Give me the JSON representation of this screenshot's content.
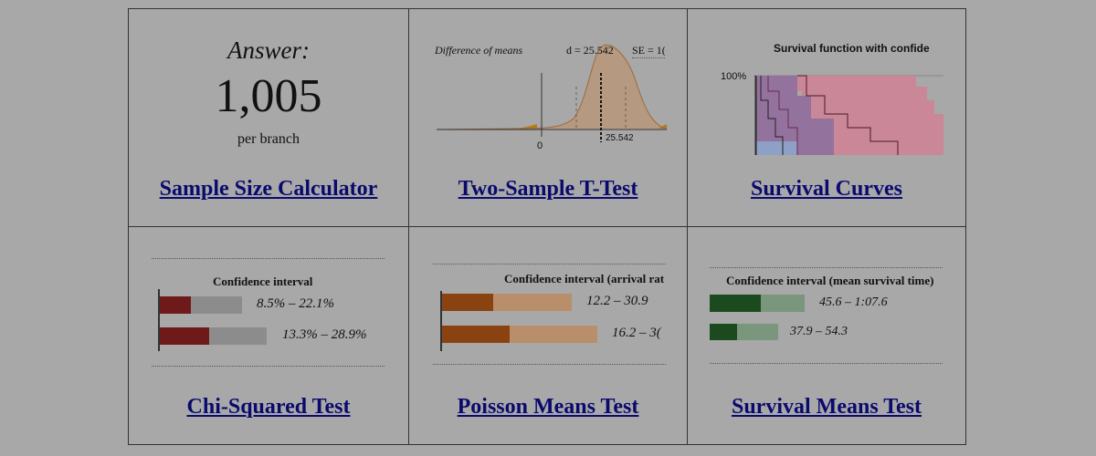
{
  "tools": [
    {
      "title": "Sample Size Calculator"
    },
    {
      "title": "Two-Sample T-Test"
    },
    {
      "title": "Survival Curves"
    },
    {
      "title": "Chi-Squared Test"
    },
    {
      "title": "Poisson Means Test"
    },
    {
      "title": "Survival Means Test"
    }
  ],
  "sample_size": {
    "answer_label": "Answer:",
    "value": "1,005",
    "unit": "per branch"
  },
  "ttest": {
    "title": "Difference of means",
    "d_label": "d = 25.542",
    "se_label": "SE = 1(",
    "zero_tick": "0",
    "mean_tick": "25.542"
  },
  "survival": {
    "title": "Survival function with confide",
    "y_tick": "100%"
  },
  "chi": {
    "ci_title": "Confidence interval",
    "rows": [
      {
        "label": "8.5% – 22.1%"
      },
      {
        "label": "13.3% – 28.9%"
      }
    ],
    "colors": {
      "dark": "#6e1a1a",
      "light": "#8c8c8c"
    }
  },
  "poisson": {
    "ci_title": "Confidence interval (arrival rat",
    "rows": [
      {
        "label": "12.2 – 30.9"
      },
      {
        "label": "16.2 – 3("
      }
    ],
    "colors": {
      "dark": "#8a4310",
      "light": "#b88f6a"
    }
  },
  "survmeans": {
    "ci_title": "Confidence interval (mean survival time)",
    "rows": [
      {
        "label": "45.6 – 1:07.6"
      },
      {
        "label": "37.9 – 54.3"
      }
    ],
    "colors": {
      "dark": "#1b4a1f",
      "light": "#7a967c"
    }
  }
}
